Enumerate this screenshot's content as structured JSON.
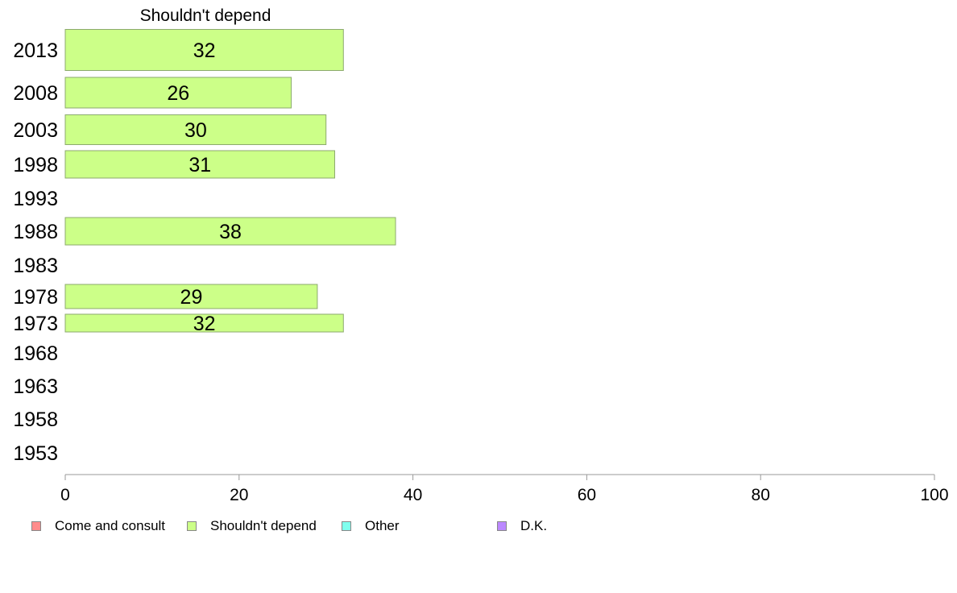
{
  "chart_data": {
    "type": "bar",
    "orientation": "horizontal",
    "title": "Shouldn't depend",
    "categories": [
      "2013",
      "2008",
      "2003",
      "1998",
      "1993",
      "1988",
      "1983",
      "1978",
      "1973",
      "1968",
      "1963",
      "1958",
      "1953"
    ],
    "series": [
      {
        "name": "Shouldn't depend",
        "color": "#ccff88",
        "values": [
          32,
          26,
          30,
          31,
          null,
          38,
          null,
          29,
          32,
          null,
          null,
          null,
          null
        ]
      }
    ],
    "xlim": [
      0,
      100
    ],
    "xticks": [
      0,
      20,
      40,
      60,
      80,
      100
    ],
    "grid": false,
    "legend_position": "bottom"
  },
  "legend": [
    {
      "label": "Come and consult",
      "color": "#ff8c8c"
    },
    {
      "label": "Shouldn't depend",
      "color": "#ccff88"
    },
    {
      "label": "Other",
      "color": "#80ffee"
    },
    {
      "label": "D.K.",
      "color": "#bb88ff"
    }
  ]
}
